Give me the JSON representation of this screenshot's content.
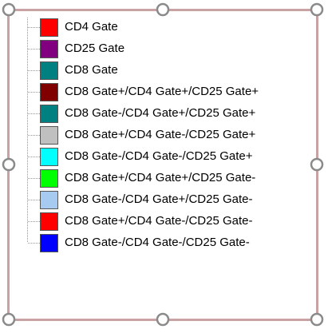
{
  "legend": {
    "items": [
      {
        "label": "CD4 Gate",
        "color": "#ff0000"
      },
      {
        "label": "CD25 Gate",
        "color": "#800080"
      },
      {
        "label": "CD8 Gate",
        "color": "#008080"
      },
      {
        "label": "CD8 Gate+/CD4 Gate+/CD25 Gate+",
        "color": "#800000"
      },
      {
        "label": "CD8 Gate-/CD4 Gate+/CD25 Gate+",
        "color": "#008080"
      },
      {
        "label": "CD8 Gate+/CD4 Gate-/CD25 Gate+",
        "color": "#c0c0c0"
      },
      {
        "label": "CD8 Gate-/CD4 Gate-/CD25 Gate+",
        "color": "#00ffff"
      },
      {
        "label": "CD8 Gate+/CD4 Gate+/CD25 Gate-",
        "color": "#00ff00"
      },
      {
        "label": "CD8 Gate-/CD4 Gate+/CD25 Gate-",
        "color": "#a6caf0"
      },
      {
        "label": "CD8 Gate+/CD4 Gate-/CD25 Gate-",
        "color": "#ff0000"
      },
      {
        "label": "CD8 Gate-/CD4 Gate-/CD25 Gate-",
        "color": "#0000ff"
      }
    ]
  }
}
